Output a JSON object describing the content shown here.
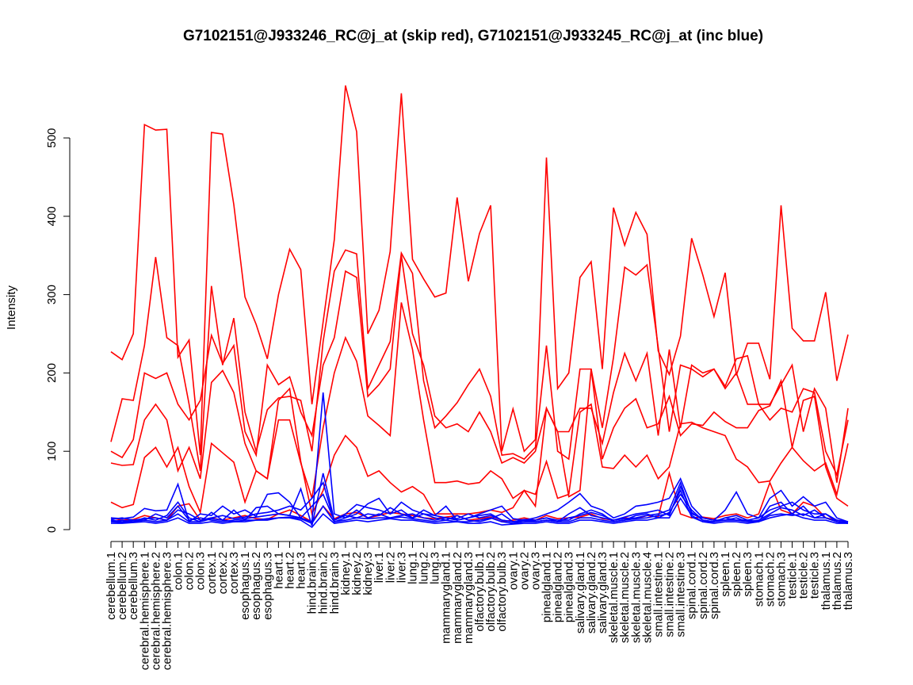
{
  "chart_data": {
    "type": "line",
    "title": "G7102151@J933246_RC@j_at (skip red), G7102151@J933245_RC@j_at (inc blue)",
    "xlabel": "",
    "ylabel": "Intensity",
    "ylim": [
      0,
      500
    ],
    "yticks": [
      0,
      100,
      200,
      300,
      400,
      500
    ],
    "grid": false,
    "colors": {
      "skip": "#ff0000",
      "inc": "#0000ff",
      "axis": "#000000"
    },
    "categories": [
      "cerebellum.1",
      "cerebellum.2",
      "cerebellum.3",
      "cerebral.hemisphere.1",
      "cerebral.hemisphere.2",
      "cerebral.hemisphere.3",
      "colon.1",
      "colon.2",
      "colon.3",
      "cortex.1",
      "cortex.2",
      "cortex.3",
      "esophagus.1",
      "esophagus.2",
      "esophagus.3",
      "heart.1",
      "heart.2",
      "heart.3",
      "hind.brain.1",
      "hind.brain.2",
      "hind.brain.3",
      "kidney.1",
      "kidney.2",
      "kidney.3",
      "liver.1",
      "liver.2",
      "liver.3",
      "lung.1",
      "lung.2",
      "lung.3",
      "mammarygland.1",
      "mammarygland.2",
      "mammarygland.3",
      "olfactory.bulb.1",
      "olfactory.bulb.2",
      "olfactory.bulb.3",
      "ovary.1",
      "ovary.2",
      "ovary.3",
      "pinealgland.1",
      "pinealgland.2",
      "pinealgland.3",
      "salivary.gland.1",
      "salivary.gland.2",
      "salivary.gland.3",
      "skeletal.muscle.1",
      "skeletal.muscle.2",
      "skeletal.muscle.3",
      "skeletal.muscle.4",
      "small.intestine.1",
      "small.intestine.2",
      "small.intestine.3",
      "spinal.cord.1",
      "spinal.cord.2",
      "spinal.cord.3",
      "spleen.1",
      "spleen.2",
      "spleen.3",
      "stomach.1",
      "stomach.2",
      "stomach.3",
      "testicle.1",
      "testicle.2",
      "testicle.3",
      "thalamus.1",
      "thalamus.2",
      "thalamus.3"
    ],
    "series": [
      {
        "name": "skip-1",
        "group": "skip",
        "values": [
          227,
          217,
          250,
          517,
          510,
          511,
          220,
          242,
          95,
          507,
          505,
          415,
          297,
          262,
          218,
          300,
          358,
          332,
          160,
          265,
          370,
          567,
          508,
          250,
          280,
          355,
          557,
          345,
          320,
          297,
          302,
          424,
          317,
          378,
          414,
          100,
          154,
          100,
          115,
          475,
          180,
          200,
          322,
          342,
          205,
          411,
          363,
          405,
          377,
          228,
          198,
          247,
          372,
          325,
          272,
          328,
          197,
          238,
          238,
          192,
          414,
          257,
          241,
          241,
          303,
          190,
          249
        ]
      },
      {
        "name": "skip-2",
        "group": "skip",
        "values": [
          112,
          167,
          165,
          235,
          348,
          245,
          235,
          160,
          75,
          311,
          210,
          270,
          150,
          100,
          153,
          168,
          170,
          165,
          100,
          240,
          330,
          357,
          352,
          180,
          210,
          240,
          353,
          327,
          190,
          130,
          145,
          162,
          185,
          205,
          170,
          95,
          97,
          90,
          105,
          235,
          100,
          90,
          205,
          205,
          130,
          220,
          335,
          325,
          338,
          233,
          125,
          210,
          205,
          195,
          205,
          183,
          218,
          222,
          160,
          160,
          185,
          210,
          125,
          180,
          155,
          60,
          155
        ]
      },
      {
        "name": "skip-3",
        "group": "skip",
        "values": [
          100,
          92,
          115,
          200,
          193,
          200,
          160,
          140,
          165,
          248,
          212,
          235,
          125,
          95,
          210,
          185,
          195,
          150,
          120,
          210,
          245,
          330,
          322,
          170,
          185,
          205,
          350,
          250,
          210,
          145,
          130,
          135,
          125,
          150,
          125,
          85,
          92,
          85,
          100,
          155,
          125,
          125,
          155,
          155,
          110,
          175,
          225,
          190,
          225,
          120,
          230,
          130,
          210,
          200,
          205,
          180,
          200,
          160,
          160,
          140,
          155,
          150,
          180,
          175,
          100,
          70,
          140
        ]
      },
      {
        "name": "skip-4",
        "group": "skip",
        "values": [
          85,
          82,
          83,
          140,
          160,
          140,
          75,
          105,
          65,
          188,
          203,
          175,
          110,
          75,
          65,
          140,
          140,
          85,
          40,
          130,
          200,
          245,
          215,
          145,
          133,
          120,
          290,
          230,
          140,
          60,
          60,
          62,
          58,
          60,
          75,
          65,
          40,
          50,
          45,
          87,
          40,
          45,
          150,
          160,
          80,
          78,
          95,
          80,
          95,
          65,
          80,
          135,
          137,
          130,
          125,
          120,
          90,
          80,
          60,
          62,
          85,
          105,
          88,
          75,
          85,
          45,
          110
        ]
      },
      {
        "name": "skip-5",
        "group": "skip",
        "values": [
          35,
          28,
          32,
          92,
          105,
          80,
          105,
          55,
          22,
          110,
          98,
          86,
          35,
          75,
          65,
          165,
          180,
          87,
          20,
          50,
          95,
          120,
          105,
          68,
          75,
          60,
          48,
          55,
          45,
          20,
          20,
          20,
          20,
          22,
          25,
          22,
          28,
          50,
          30,
          155,
          125,
          42,
          50,
          205,
          90,
          130,
          155,
          167,
          130,
          135,
          170,
          120,
          135,
          133,
          150,
          138,
          130,
          130,
          152,
          158,
          190,
          105,
          165,
          170,
          80,
          40,
          30
        ]
      },
      {
        "name": "skip-6",
        "group": "skip",
        "values": [
          15,
          12,
          13,
          18,
          15,
          12,
          30,
          33,
          12,
          15,
          12,
          15,
          18,
          14,
          13,
          20,
          25,
          18,
          10,
          30,
          14,
          20,
          22,
          15,
          18,
          22,
          20,
          18,
          15,
          14,
          16,
          18,
          12,
          14,
          16,
          10,
          12,
          15,
          12,
          18,
          14,
          15,
          16,
          20,
          14,
          12,
          15,
          14,
          18,
          16,
          72,
          20,
          15,
          16,
          14,
          18,
          20,
          15,
          20,
          60,
          25,
          20,
          35,
          30,
          15,
          12,
          10
        ]
      },
      {
        "name": "inc-1",
        "group": "inc",
        "values": [
          15,
          14,
          16,
          27,
          24,
          25,
          58,
          10,
          20,
          18,
          30,
          20,
          25,
          17,
          45,
          47,
          35,
          15,
          10,
          175,
          20,
          15,
          20,
          33,
          40,
          20,
          35,
          25,
          20,
          18,
          30,
          12,
          15,
          20,
          25,
          30,
          14,
          12,
          15,
          20,
          25,
          35,
          46,
          30,
          25,
          15,
          20,
          30,
          32,
          35,
          40,
          65,
          30,
          15,
          12,
          25,
          48,
          20,
          15,
          40,
          50,
          30,
          42,
          30,
          35,
          15,
          10
        ]
      },
      {
        "name": "inc-2",
        "group": "inc",
        "values": [
          10,
          12,
          10,
          15,
          12,
          18,
          35,
          15,
          10,
          22,
          12,
          25,
          12,
          28,
          30,
          20,
          18,
          52,
          5,
          72,
          12,
          20,
          32,
          28,
          25,
          20,
          25,
          15,
          20,
          15,
          12,
          18,
          12,
          10,
          14,
          20,
          10,
          12,
          10,
          12,
          10,
          20,
          28,
          18,
          15,
          12,
          16,
          20,
          22,
          25,
          18,
          55,
          22,
          12,
          10,
          15,
          18,
          12,
          10,
          30,
          35,
          20,
          30,
          15,
          20,
          10,
          8
        ]
      },
      {
        "name": "inc-3",
        "group": "inc",
        "values": [
          12,
          10,
          12,
          14,
          15,
          12,
          25,
          20,
          12,
          15,
          18,
          14,
          16,
          20,
          22,
          25,
          30,
          25,
          40,
          60,
          10,
          15,
          25,
          15,
          20,
          15,
          18,
          20,
          15,
          12,
          15,
          14,
          20,
          15,
          18,
          12,
          10,
          13,
          12,
          15,
          12,
          12,
          20,
          25,
          20,
          10,
          12,
          18,
          20,
          15,
          22,
          45,
          25,
          12,
          10,
          15,
          12,
          12,
          15,
          25,
          30,
          35,
          25,
          20,
          20,
          12,
          10
        ]
      },
      {
        "name": "inc-4",
        "group": "inc",
        "values": [
          8,
          8,
          9,
          10,
          8,
          10,
          15,
          8,
          8,
          10,
          8,
          10,
          10,
          12,
          12,
          15,
          15,
          12,
          3,
          20,
          8,
          10,
          12,
          10,
          12,
          14,
          12,
          12,
          10,
          8,
          9,
          10,
          8,
          8,
          10,
          6,
          7,
          8,
          8,
          10,
          8,
          8,
          12,
          12,
          10,
          8,
          10,
          12,
          12,
          15,
          15,
          40,
          18,
          10,
          8,
          10,
          10,
          8,
          10,
          15,
          18,
          20,
          15,
          12,
          12,
          8,
          8
        ]
      },
      {
        "name": "inc-5",
        "group": "inc",
        "values": [
          13,
          15,
          12,
          12,
          20,
          15,
          30,
          12,
          15,
          12,
          10,
          12,
          14,
          16,
          18,
          20,
          18,
          15,
          30,
          45,
          12,
          18,
          15,
          20,
          18,
          28,
          20,
          15,
          25,
          18,
          15,
          12,
          15,
          18,
          20,
          12,
          10,
          10,
          12,
          15,
          10,
          15,
          18,
          22,
          18,
          12,
          14,
          15,
          18,
          20,
          25,
          60,
          20,
          15,
          12,
          12,
          15,
          10,
          12,
          20,
          28,
          25,
          18,
          25,
          15,
          10,
          9
        ]
      },
      {
        "name": "inc-6",
        "group": "inc",
        "values": [
          10,
          9,
          10,
          12,
          10,
          12,
          20,
          10,
          10,
          14,
          12,
          10,
          12,
          12,
          14,
          15,
          16,
          14,
          8,
          30,
          10,
          12,
          15,
          14,
          15,
          15,
          16,
          14,
          12,
          10,
          12,
          10,
          10,
          12,
          15,
          10,
          8,
          10,
          10,
          12,
          10,
          10,
          15,
          15,
          12,
          10,
          12,
          14,
          15,
          18,
          20,
          50,
          16,
          10,
          10,
          12,
          12,
          10,
          10,
          18,
          20,
          18,
          20,
          15,
          15,
          10,
          8
        ]
      }
    ]
  }
}
